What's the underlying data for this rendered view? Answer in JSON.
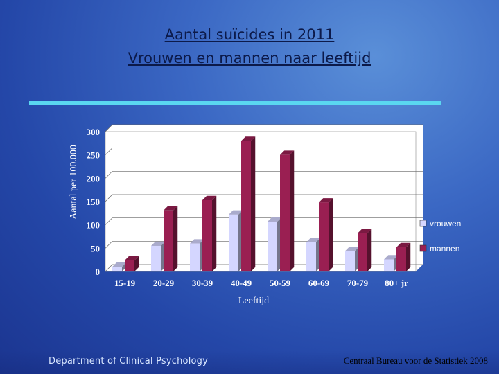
{
  "header": {
    "title_line1": "Aantal suïcides in 2011",
    "title_line2": "Vrouwen en mannen naar leeftijd"
  },
  "footer": {
    "department": "Department of Clinical Psychology",
    "source": "Centraal Bureau voor de Statistiek 2008"
  },
  "colors": {
    "vrouwen": "#d4d6ff",
    "mannen": "#9a1f52",
    "plot_bg": "#ffffff",
    "rule": "#5ad7f0"
  },
  "chart_data": {
    "type": "bar",
    "categories": [
      "15-19",
      "20-29",
      "30-39",
      "40-49",
      "50-59",
      "60-69",
      "70-79",
      "80+ jr"
    ],
    "series": [
      {
        "name": "vrouwen",
        "values": [
          10,
          55,
          60,
          122,
          107,
          63,
          44,
          26
        ]
      },
      {
        "name": "mannen",
        "values": [
          24,
          131,
          153,
          280,
          250,
          148,
          82,
          52
        ]
      }
    ],
    "xlabel": "Leeftijd",
    "ylabel": "Aantal per 100.000",
    "ylim": [
      0,
      300
    ],
    "yticks": [
      0,
      50,
      100,
      150,
      200,
      250,
      300
    ],
    "legend_position": "right",
    "grid": true
  }
}
